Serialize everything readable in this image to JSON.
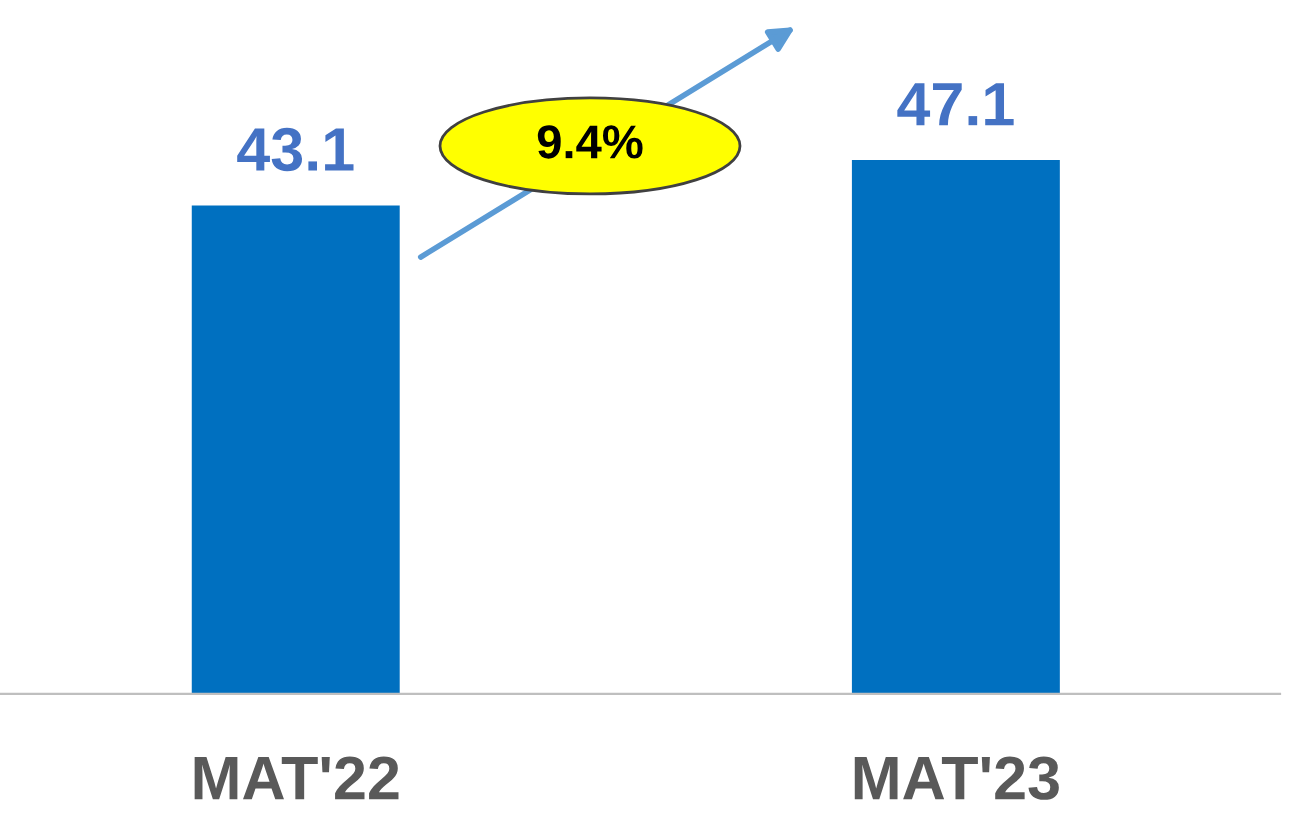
{
  "chart_data": {
    "type": "bar",
    "categories": [
      "MAT'22",
      "MAT'23"
    ],
    "values": [
      43.1,
      47.1
    ],
    "color": "#0070c0",
    "data_labels": true,
    "tick_labels": "x",
    "grid": false,
    "legend": false,
    "annotations": [
      "9.4%"
    ]
  }
}
